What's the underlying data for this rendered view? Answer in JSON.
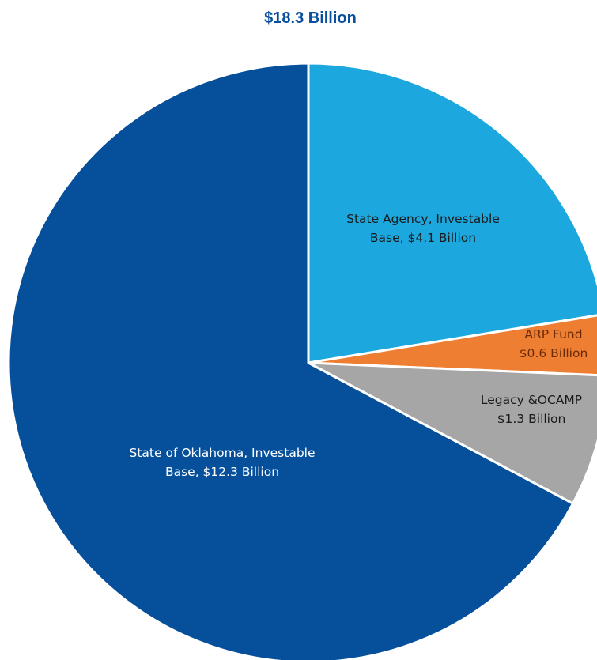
{
  "chart_data": {
    "type": "pie",
    "title": "$18.3 Billion",
    "slices": [
      {
        "name": "State Agency, Investable Base",
        "value": 4.1,
        "label_lines": [
          "State Agency, Investable",
          "Base, $4.1 Billion"
        ],
        "color": "#1ca7de",
        "label_color": "#1a1a1a"
      },
      {
        "name": "ARP Fund",
        "value": 0.6,
        "label_lines": [
          "ARP Fund",
          "$0.6 Billion"
        ],
        "color": "#ee7f32",
        "label_color": "#6b2a05"
      },
      {
        "name": "Legacy &OCAMP",
        "value": 1.3,
        "label_lines": [
          "Legacy &OCAMP",
          "$1.3 Billion"
        ],
        "color": "#a6a6a6",
        "label_color": "#1a1a1a"
      },
      {
        "name": "State of Oklahoma, Investable Base",
        "value": 12.3,
        "label_lines": [
          "State of Oklahoma, Investable",
          "Base, $12.3 Billion"
        ],
        "color": "#06509b",
        "label_color": "#ffffff"
      }
    ]
  }
}
